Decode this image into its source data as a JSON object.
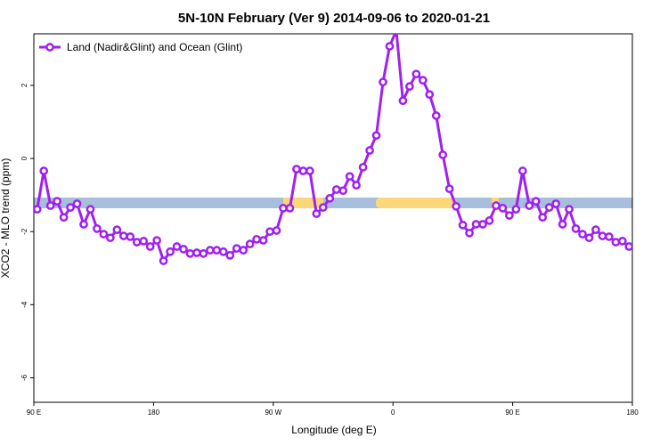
{
  "chart_data": {
    "type": "line",
    "title": "5N-10N February (Ver 9)   2014-09-06 to 2020-01-21",
    "xlabel": "Longitude (deg E)",
    "ylabel": "XCO2 - MLO trend (ppm)",
    "legend": "topleft",
    "xlim": [
      90,
      540
    ],
    "ylim": [
      -6.67,
      3.41
    ],
    "xticks": [
      {
        "value": 90,
        "label": "90 E"
      },
      {
        "value": 180,
        "label": "180"
      },
      {
        "value": 270,
        "label": "90 W"
      },
      {
        "value": 360,
        "label": "0"
      },
      {
        "value": 450,
        "label": "90 E"
      },
      {
        "value": 540,
        "label": "180"
      }
    ],
    "yticks": [
      -6,
      -4,
      -2,
      0,
      2
    ],
    "x": [
      92.5,
      97.5,
      102.5,
      107.5,
      112.5,
      117.5,
      122.5,
      127.5,
      132.5,
      137.5,
      142.5,
      147.5,
      152.5,
      157.5,
      162.5,
      167.5,
      172.5,
      177.5,
      182.5,
      187.5,
      192.5,
      197.5,
      202.5,
      207.5,
      212.5,
      217.5,
      222.5,
      227.5,
      232.5,
      237.5,
      242.5,
      247.5,
      252.5,
      257.5,
      262.5,
      267.5,
      272.5,
      277.5,
      282.5,
      287.5,
      292.5,
      297.5,
      302.5,
      307.5,
      312.5,
      317.5,
      322.5,
      327.5,
      332.5,
      337.5,
      342.5,
      347.5,
      352.5,
      357.5,
      362.5,
      367.5,
      372.5,
      377.5,
      382.5,
      387.5,
      392.5,
      397.5,
      402.5,
      407.5,
      412.5,
      417.5,
      422.5,
      427.5,
      432.5,
      437.5,
      442.5,
      447.5,
      452.5,
      457.5,
      462.5,
      467.5,
      472.5,
      477.5,
      482.5,
      487.5,
      492.5,
      497.5,
      502.5,
      507.5,
      512.5,
      517.5,
      522.5,
      527.5,
      532.5,
      537.5
    ],
    "series": [
      {
        "name": "Land (Nadir&Glint) and Ocean (Glint)",
        "color": "#a020f0",
        "values": [
          -1.39,
          -0.34,
          -1.29,
          -1.17,
          -1.61,
          -1.34,
          -1.24,
          -1.8,
          -1.39,
          -1.92,
          -2.07,
          -2.17,
          -1.95,
          -2.12,
          -2.14,
          -2.29,
          -2.26,
          -2.41,
          -2.24,
          -2.8,
          -2.55,
          -2.41,
          -2.48,
          -2.6,
          -2.58,
          -2.6,
          -2.51,
          -2.51,
          -2.55,
          -2.65,
          -2.46,
          -2.51,
          -2.34,
          -2.21,
          -2.24,
          -2.0,
          -1.97,
          -1.36,
          -1.36,
          -0.29,
          -0.34,
          -0.34,
          -1.51,
          -1.34,
          -1.09,
          -0.85,
          -0.88,
          -0.49,
          -0.73,
          -0.24,
          0.22,
          0.63,
          2.09,
          3.07,
          3.5,
          1.58,
          1.97,
          2.31,
          2.14,
          1.75,
          1.17,
          0.1,
          -0.83,
          -1.31,
          -1.82,
          -2.04,
          -1.8,
          -1.8,
          -1.7,
          -1.29,
          -1.36,
          -1.56,
          -1.39,
          -0.34,
          -1.29,
          -1.17,
          -1.61,
          -1.34,
          -1.24,
          -1.8,
          -1.39,
          -1.92,
          -2.07,
          -2.17,
          -1.95,
          -2.12,
          -2.14,
          -2.29,
          -2.26,
          -2.41
        ]
      }
    ]
  }
}
